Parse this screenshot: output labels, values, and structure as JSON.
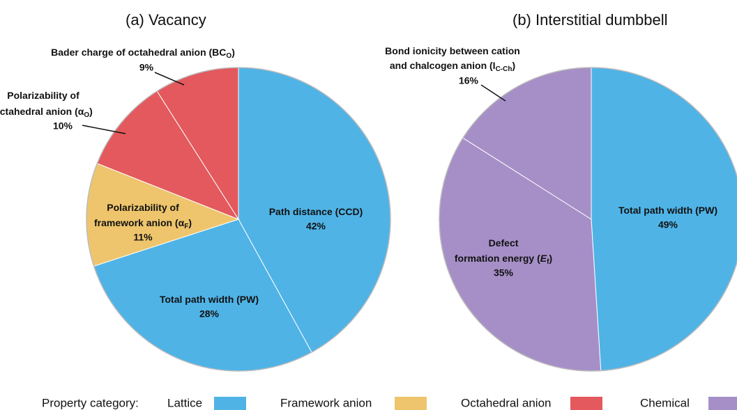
{
  "chart_data": [
    {
      "type": "pie",
      "title": "(a) Vacancy",
      "slices": [
        {
          "label": [
            [
              "Path distance (CCD)"
            ]
          ],
          "value": 42,
          "value_label": "42%",
          "color": "#4fb3e6"
        },
        {
          "label": [
            [
              "Total path width (PW)"
            ]
          ],
          "value": 28,
          "value_label": "28%",
          "color": "#4fb3e6"
        },
        {
          "label": [
            [
              "Polarizability of"
            ],
            [
              "framework anion (α",
              {
                "sub": "F"
              },
              ")"
            ]
          ],
          "value": 11,
          "value_label": "11%",
          "color": "#eec56c"
        },
        {
          "label": [
            [
              "Polarizability of"
            ],
            [
              "octahedral anion (α",
              {
                "sub": "O"
              },
              ")"
            ]
          ],
          "value": 10,
          "value_label": "10%",
          "color": "#e3595d"
        },
        {
          "label": [
            [
              "Bader charge of octahedral anion (BC",
              {
                "sub": "O"
              },
              ")"
            ]
          ],
          "value": 9,
          "value_label": "9%",
          "color": "#e3595d"
        }
      ]
    },
    {
      "type": "pie",
      "title": "(b) Interstitial dumbbell",
      "slices": [
        {
          "label": [
            [
              "Total path width (PW)"
            ]
          ],
          "value": 49,
          "value_label": "49%",
          "color": "#4fb3e6"
        },
        {
          "label": [
            [
              "Defect"
            ],
            [
              "formation energy (",
              {
                "italic": "E"
              },
              {
                "sub": "f"
              },
              ")"
            ]
          ],
          "value": 35,
          "value_label": "35%",
          "color": "#a68fc7"
        },
        {
          "label": [
            [
              "Bond ionicity between cation"
            ],
            [
              "and chalcogen anion (I",
              {
                "sub": "C-Ch"
              },
              ")"
            ]
          ],
          "value": 16,
          "value_label": "16%",
          "color": "#a68fc7"
        }
      ]
    }
  ],
  "legend": {
    "title": "Property category:",
    "items": [
      {
        "name": "Lattice",
        "color": "#4fb3e6"
      },
      {
        "name": "Framework anion",
        "color": "#eec56c"
      },
      {
        "name": "Octahedral anion",
        "color": "#e3595d"
      },
      {
        "name": "Chemical",
        "color": "#a68fc7"
      }
    ]
  }
}
